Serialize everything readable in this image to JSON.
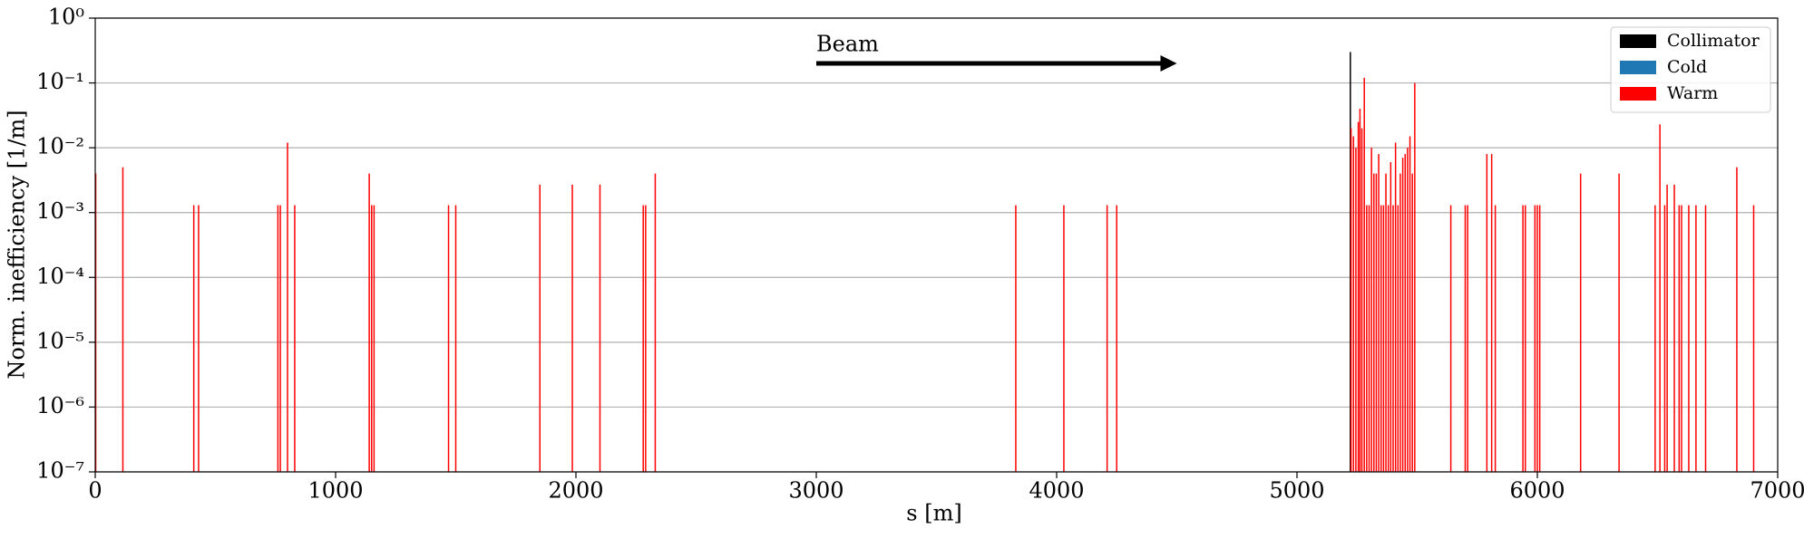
{
  "chart_data": {
    "type": "bar",
    "log_y": true,
    "grid": true,
    "legend": "upper right",
    "xlabel": "s [m]",
    "ylabel": "Norm. inefficiency [1/m]",
    "annotation": "Beam",
    "xlim": [
      0,
      7000
    ],
    "xticks": [
      0,
      1000,
      2000,
      3000,
      4000,
      5000,
      6000,
      7000
    ],
    "ylim": [
      1e-07,
      1
    ],
    "yticks": [
      {
        "value": 1e-07,
        "label": "10⁻⁷"
      },
      {
        "value": 1e-06,
        "label": "10⁻⁶"
      },
      {
        "value": 1e-05,
        "label": "10⁻⁵"
      },
      {
        "value": 0.0001,
        "label": "10⁻⁴"
      },
      {
        "value": 0.001,
        "label": "10⁻³"
      },
      {
        "value": 0.01,
        "label": "10⁻²"
      },
      {
        "value": 0.1,
        "label": "10⁻¹"
      },
      {
        "value": 1,
        "label": "10⁰"
      }
    ],
    "series": [
      {
        "name": "Collimator",
        "color": "#000000",
        "x": [
          5222
        ],
        "values": [
          0.3
        ]
      },
      {
        "name": "Cold",
        "color": "#1f77b4",
        "x": [],
        "values": []
      },
      {
        "name": "Warm",
        "color": "#ff0000",
        "x": [
          2,
          115,
          410,
          430,
          760,
          770,
          800,
          830,
          1140,
          1150,
          1160,
          1470,
          1500,
          1850,
          1985,
          2100,
          2280,
          2290,
          2330,
          3830,
          4030,
          4210,
          4250,
          5225,
          5235,
          5245,
          5255,
          5262,
          5270,
          5280,
          5290,
          5300,
          5310,
          5320,
          5330,
          5340,
          5350,
          5360,
          5370,
          5380,
          5390,
          5400,
          5410,
          5420,
          5430,
          5440,
          5450,
          5460,
          5470,
          5480,
          5490,
          5640,
          5700,
          5710,
          5790,
          5810,
          5825,
          5940,
          5950,
          5990,
          6000,
          6010,
          6180,
          6340,
          6490,
          6510,
          6530,
          6540,
          6570,
          6590,
          6600,
          6630,
          6660,
          6700,
          6830,
          6900
        ],
        "values": [
          0.004,
          0.005,
          0.0013,
          0.0013,
          0.0013,
          0.0013,
          0.012,
          0.0013,
          0.004,
          0.0013,
          0.0013,
          0.0013,
          0.0013,
          0.0027,
          0.0027,
          0.0027,
          0.0013,
          0.0013,
          0.004,
          0.0013,
          0.0013,
          0.0013,
          0.0013,
          0.02,
          0.015,
          0.01,
          0.025,
          0.04,
          0.02,
          0.12,
          0.0013,
          0.0013,
          0.01,
          0.004,
          0.004,
          0.008,
          0.0013,
          0.0013,
          0.004,
          0.0013,
          0.006,
          0.0013,
          0.012,
          0.0013,
          0.004,
          0.007,
          0.008,
          0.01,
          0.015,
          0.004,
          0.1,
          0.0013,
          0.0013,
          0.0013,
          0.008,
          0.008,
          0.0013,
          0.0013,
          0.0013,
          0.0013,
          0.0013,
          0.0013,
          0.004,
          0.004,
          0.0013,
          0.023,
          0.0013,
          0.0027,
          0.0027,
          0.0013,
          0.0013,
          0.0013,
          0.0013,
          0.0013,
          0.005,
          0.0013
        ]
      }
    ]
  }
}
